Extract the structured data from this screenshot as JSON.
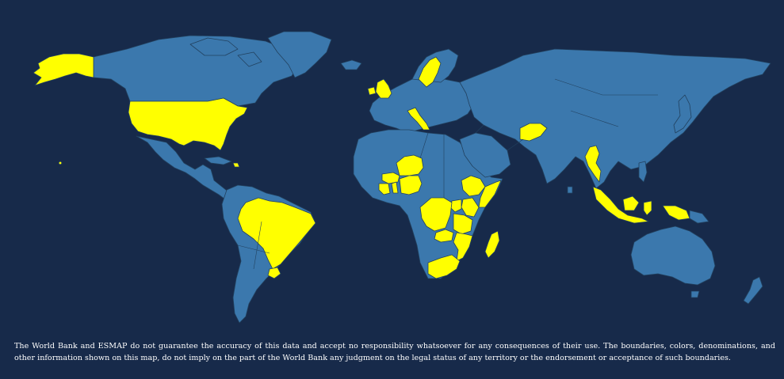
{
  "map": {
    "background_color": "#172a4a",
    "land_color": "#3b78ad",
    "highlight_color": "#ffff00",
    "highlighted_regions": [
      "Alaska",
      "United States",
      "Hawaii",
      "Haiti",
      "Brazil",
      "Uruguay",
      "United Kingdom",
      "Ireland",
      "Sweden",
      "Italy",
      "Afghanistan",
      "Burkina Faso",
      "Niger",
      "Nigeria",
      "Togo",
      "Benin",
      "Côte d'Ivoire",
      "Ethiopia",
      "Somalia",
      "Kenya",
      "Uganda",
      "Rwanda",
      "Democratic Republic of the Congo",
      "Tanzania",
      "Zambia",
      "Malawi",
      "Mozambique",
      "Madagascar",
      "South Africa",
      "Myanmar",
      "Indonesia"
    ]
  },
  "disclaimer": {
    "text": "The World Bank and ESMAP do not guarantee the accuracy of this data and accept no responsibility whatsoever for any consequences of their use. The boundaries, colors, denominations, and other information shown on this map, do not imply on the part of the World Bank any judgment on the legal status of any territory or the endorsement or acceptance of such boundaries."
  }
}
